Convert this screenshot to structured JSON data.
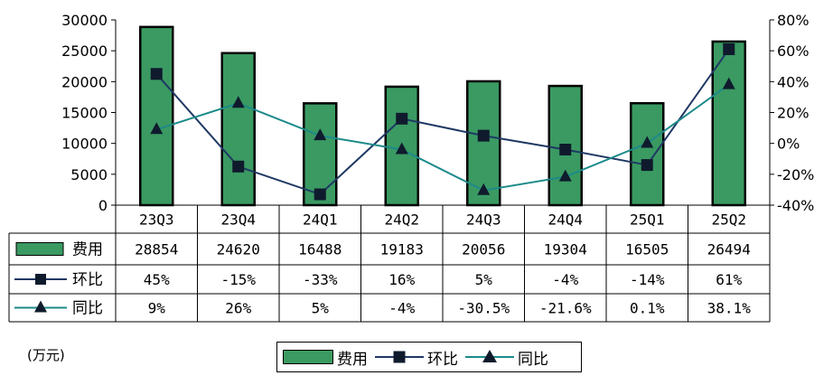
{
  "unit_label": "(万元)",
  "legend": [
    "费用",
    "环比",
    "同比"
  ],
  "colors": {
    "bar": "#3a9a62",
    "qoq": "#1f3864",
    "yoy": "#1d8a8a"
  },
  "chart_data": {
    "type": "bar",
    "categories": [
      "23Q3",
      "23Q4",
      "24Q1",
      "24Q2",
      "24Q3",
      "24Q4",
      "25Q1",
      "25Q2"
    ],
    "series": [
      {
        "name": "费用",
        "type": "bar",
        "axis": "left",
        "values": [
          28854,
          24620,
          16488,
          19183,
          20056,
          19304,
          16505,
          26494
        ],
        "labels": [
          "28854",
          "24620",
          "16488",
          "19183",
          "20056",
          "19304",
          "16505",
          "26494"
        ]
      },
      {
        "name": "环比",
        "type": "line",
        "axis": "right",
        "marker": "square",
        "values": [
          45,
          -15,
          -33,
          16,
          5,
          -4,
          -14,
          61
        ],
        "labels": [
          "45%",
          "-15%",
          "-33%",
          "16%",
          "5%",
          "-4%",
          "-14%",
          "61%"
        ]
      },
      {
        "name": "同比",
        "type": "line",
        "axis": "right",
        "marker": "triangle",
        "values": [
          9,
          26,
          5,
          -4,
          -30.5,
          -21.6,
          0.1,
          38.1
        ],
        "labels": [
          "9%",
          "26%",
          "5%",
          "-4%",
          "-30.5%",
          "-21.6%",
          "0.1%",
          "38.1%"
        ]
      }
    ],
    "left_axis": {
      "ylim": [
        0,
        30000
      ],
      "ticks": [
        "0",
        "5000",
        "10000",
        "15000",
        "20000",
        "25000",
        "30000"
      ]
    },
    "right_axis": {
      "ylim": [
        -40,
        80
      ],
      "ticks": [
        "-40%",
        "-20%",
        "0%",
        "20%",
        "40%",
        "60%",
        "80%"
      ]
    },
    "data_table": true,
    "legend_position": "bottom"
  }
}
